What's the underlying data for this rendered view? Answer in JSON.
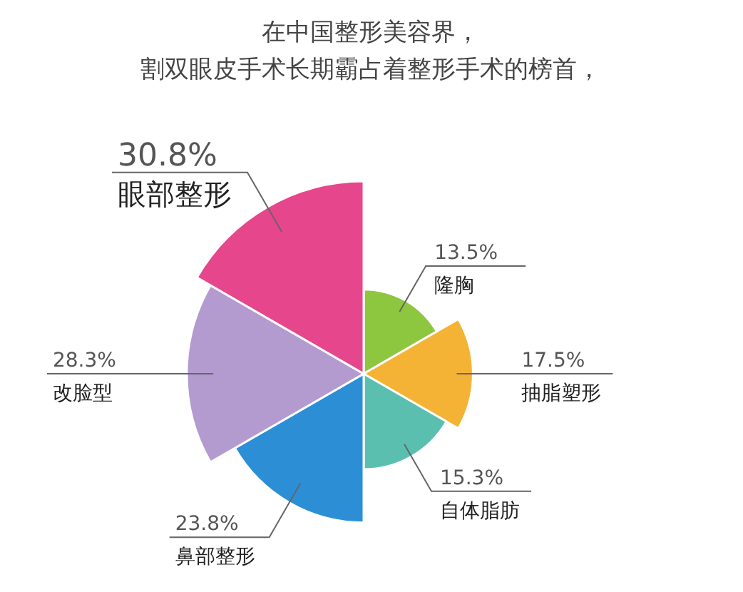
{
  "chart_data": {
    "type": "other",
    "title": "在中国整形美容界，",
    "subtitle": "割双眼皮手术长期霸占着整形手术的榜首，",
    "categories": [
      "隆胸",
      "抽脂塑形",
      "自体脂肪",
      "鼻部整形",
      "改脸型",
      "眼部整形"
    ],
    "values": [
      13.5,
      17.5,
      15.3,
      23.8,
      28.3,
      30.8
    ],
    "value_labels": [
      "13.5%",
      "17.5%",
      "15.3%",
      "23.8%",
      "28.3%",
      "30.8%"
    ],
    "colors": [
      "#8dc63f",
      "#f5b335",
      "#5bbfb0",
      "#2c8fd6",
      "#b39bd0",
      "#e6468c"
    ]
  }
}
